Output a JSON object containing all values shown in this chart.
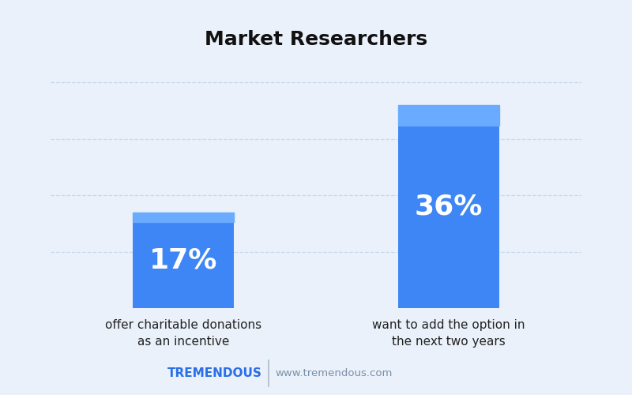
{
  "title": "Market Researchers",
  "categories": [
    "offer charitable donations\nas an incentive",
    "want to add the option in\nthe next two years"
  ],
  "values": [
    17,
    36
  ],
  "labels": [
    "17%",
    "36%"
  ],
  "bar_color": "#3E86F5",
  "bar_color_top": "#6AABFF",
  "background_color": "#EAF1FA",
  "plot_bg_color": "#EAF1FA",
  "footer_bg_color": "#D8E7F5",
  "title_fontsize": 18,
  "label_fontsize": 26,
  "tick_fontsize": 11,
  "brand_name": "TREMENDOUS",
  "brand_color": "#2A6EE8",
  "website": "www.tremendous.com",
  "website_color": "#7A8FAA",
  "ylim": [
    0,
    42
  ],
  "grid_color": "#C5D9EF",
  "yticks": [
    10,
    20,
    30,
    40
  ]
}
